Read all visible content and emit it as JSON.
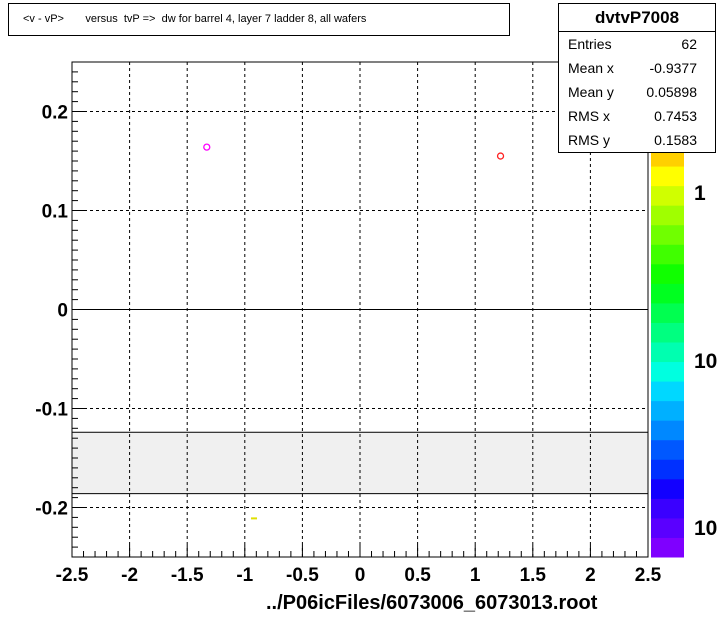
{
  "title": "<v - vP>       versus  tvP =>  dw for barrel 4, layer 7 ladder 8, all wafers",
  "stats": {
    "name": "dvtvP7008",
    "rows": [
      {
        "label": "Entries",
        "value": "62"
      },
      {
        "label": "Mean x",
        "value": "-0.9377"
      },
      {
        "label": "Mean y",
        "value": "0.05898"
      },
      {
        "label": "RMS x",
        "value": "0.7453"
      },
      {
        "label": "RMS y",
        "value": "0.1583"
      }
    ]
  },
  "x_title": "../P06icFiles/6073006_6073013.root",
  "colors": {
    "band": "#f0f0f0",
    "palette": [
      "#7f00ff",
      "#5a00ff",
      "#3a00ff",
      "#1200ff",
      "#0030ff",
      "#0058ff",
      "#0088ff",
      "#00b0ff",
      "#00d8ff",
      "#00ffe0",
      "#00ffb0",
      "#00ff80",
      "#00ff50",
      "#00ff20",
      "#10ff00",
      "#40ff00",
      "#70ff00",
      "#a0ff00",
      "#d0ff00",
      "#ffff00",
      "#ffd000",
      "#ffa000"
    ]
  },
  "chart_data": {
    "type": "scatter",
    "xlim": [
      -2.5,
      2.5
    ],
    "ylim": [
      -0.25,
      0.25
    ],
    "x_ticks": [
      "-2.5",
      "-2",
      "-1.5",
      "-1",
      "-0.5",
      "0",
      "0.5",
      "1",
      "1.5",
      "2",
      "2.5"
    ],
    "y_ticks": [
      "-0.2",
      "-0.1",
      "0",
      "0.1",
      "0.2"
    ],
    "grid": true,
    "points": [
      {
        "x": -1.33,
        "y": 0.164,
        "color": "#ff00ff",
        "marker": "circle"
      },
      {
        "x": 1.22,
        "y": 0.155,
        "color": "#ff2020",
        "marker": "circle"
      },
      {
        "x": -0.92,
        "y": -0.211,
        "color": "#e0e000",
        "marker": "dash"
      }
    ],
    "excluded_band": {
      "y_from": -0.186,
      "y_to": -0.124
    },
    "colorbar": {
      "labels": [
        "1",
        "10",
        "10"
      ]
    }
  }
}
